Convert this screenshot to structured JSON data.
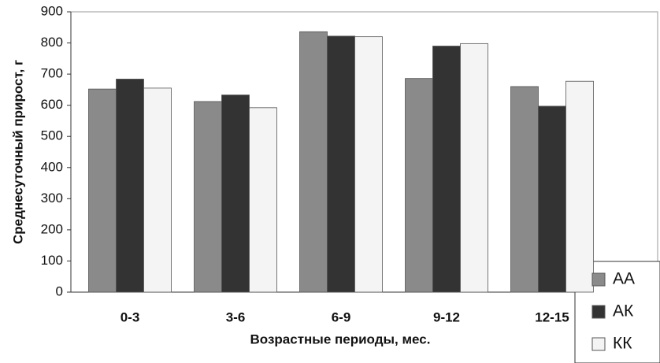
{
  "chart_data": {
    "type": "bar",
    "categories": [
      "0-3",
      "3-6",
      "6-9",
      "9-12",
      "12-15"
    ],
    "series": [
      {
        "name": "АА",
        "color": "#8a8a8a",
        "values": [
          652,
          612,
          836,
          686,
          660
        ]
      },
      {
        "name": "АК",
        "color": "#333333",
        "values": [
          684,
          633,
          822,
          790,
          597
        ]
      },
      {
        "name": "КК",
        "color": "#f4f4f4",
        "values": [
          655,
          592,
          820,
          798,
          677
        ]
      }
    ],
    "ylim": [
      0,
      900
    ],
    "yticks": [
      0,
      100,
      200,
      300,
      400,
      500,
      600,
      700,
      800,
      900
    ],
    "ylabel": "Среднесуточный прирост, г",
    "xlabel": "Возрастные периоды, мес.",
    "grid": false,
    "legend": "bottom-right"
  }
}
